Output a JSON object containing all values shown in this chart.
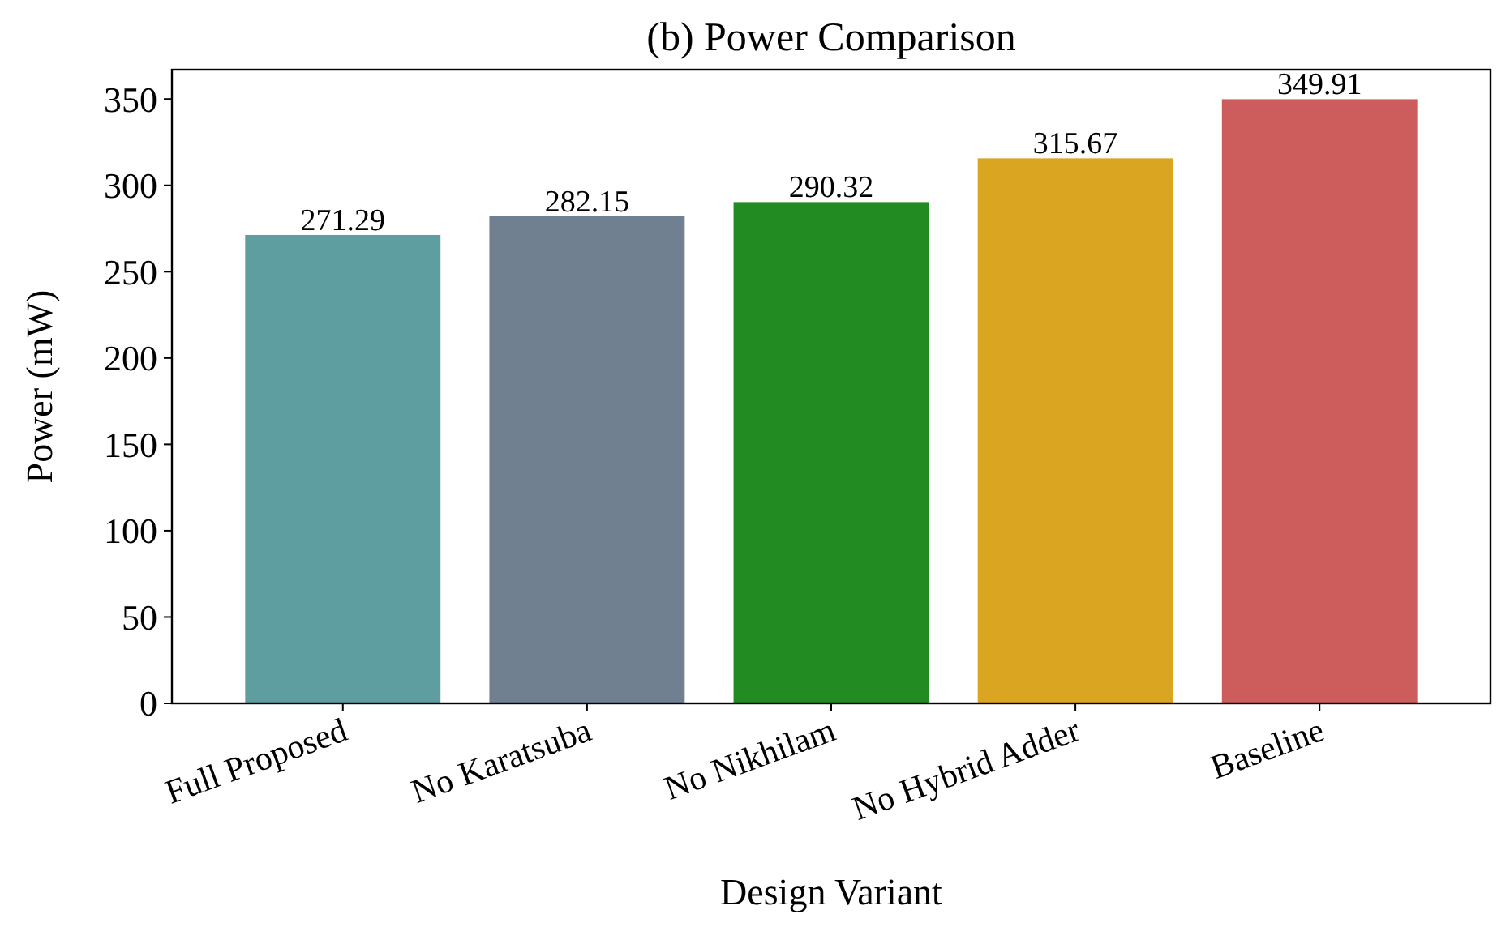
{
  "chart_data": {
    "type": "bar",
    "title": "(b) Power Comparison",
    "xlabel": "Design Variant",
    "ylabel": "Power (mW)",
    "categories": [
      "Full Proposed",
      "No Karatsuba",
      "No Nikhilam",
      "No Hybrid Adder",
      "Baseline"
    ],
    "values": [
      271.29,
      282.15,
      290.32,
      315.67,
      349.91
    ],
    "colors": [
      "#5f9ea0",
      "#708090",
      "#228b22",
      "#daa520",
      "#cd5c5c"
    ],
    "ylim": [
      0,
      367
    ],
    "yticks": [
      0,
      50,
      100,
      150,
      200,
      250,
      300,
      350
    ],
    "data_labels": true,
    "grid": false
  }
}
